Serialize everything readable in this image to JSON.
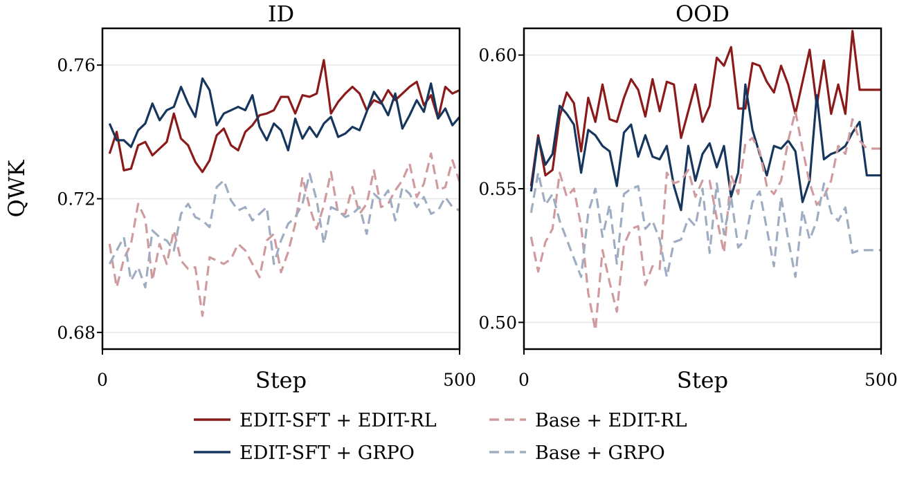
{
  "chart_data": [
    {
      "type": "line",
      "title": "ID",
      "xlabel": "Step",
      "ylabel": "QWK",
      "xlim": [
        0,
        500
      ],
      "ylim": [
        0.675,
        0.771
      ],
      "xticks": [
        0,
        500
      ],
      "xtick_labels": [
        "0",
        "500"
      ],
      "yticks": [
        0.68,
        0.72,
        0.76
      ],
      "ytick_labels": [
        "0.68",
        "0.72",
        "0.76"
      ],
      "grid": "horizontal",
      "x": [
        10,
        20,
        30,
        40,
        50,
        60,
        70,
        80,
        90,
        100,
        110,
        120,
        130,
        140,
        150,
        160,
        170,
        180,
        190,
        200,
        210,
        220,
        230,
        240,
        250,
        260,
        270,
        280,
        290,
        300,
        310,
        320,
        330,
        340,
        350,
        360,
        370,
        380,
        390,
        400,
        410,
        420,
        430,
        440,
        450,
        460,
        470,
        480,
        490,
        500
      ],
      "series": [
        {
          "name": "EDIT-SFT + EDIT-RL",
          "style": "solid",
          "color": "#8b1a1a",
          "values": [
            0.7335,
            0.74,
            0.7285,
            0.729,
            0.736,
            0.737,
            0.733,
            0.735,
            0.737,
            0.7455,
            0.738,
            0.736,
            0.731,
            0.728,
            0.7315,
            0.739,
            0.741,
            0.736,
            0.7345,
            0.74,
            0.742,
            0.745,
            0.7455,
            0.7465,
            0.7505,
            0.7505,
            0.7455,
            0.751,
            0.7505,
            0.7515,
            0.7615,
            0.7455,
            0.749,
            0.7515,
            0.7535,
            0.7515,
            0.7465,
            0.7495,
            0.7485,
            0.7525,
            0.7495,
            0.7515,
            0.7535,
            0.755,
            0.748,
            0.751,
            0.744,
            0.7535,
            0.7515,
            0.7525
          ]
        },
        {
          "name": "EDIT-SFT + GRPO",
          "style": "solid",
          "color": "#17365d",
          "values": [
            0.7425,
            0.7375,
            0.7375,
            0.7355,
            0.7405,
            0.7425,
            0.7485,
            0.7435,
            0.7465,
            0.7475,
            0.7535,
            0.7485,
            0.7445,
            0.756,
            0.7525,
            0.742,
            0.7455,
            0.7465,
            0.7475,
            0.7465,
            0.751,
            0.7415,
            0.7375,
            0.7425,
            0.7405,
            0.7345,
            0.744,
            0.738,
            0.7415,
            0.7385,
            0.7425,
            0.7445,
            0.7385,
            0.7395,
            0.7415,
            0.7405,
            0.746,
            0.752,
            0.749,
            0.745,
            0.7515,
            0.741,
            0.745,
            0.7495,
            0.746,
            0.7545,
            0.744,
            0.747,
            0.742,
            0.7445
          ]
        },
        {
          "name": "Base + EDIT-RL",
          "style": "dashed",
          "color": "#d09b9e",
          "values": [
            0.7065,
            0.6935,
            0.702,
            0.7065,
            0.7185,
            0.714,
            0.6955,
            0.7065,
            0.7005,
            0.7105,
            0.7015,
            0.699,
            0.6995,
            0.685,
            0.7025,
            0.7015,
            0.7005,
            0.702,
            0.7065,
            0.7045,
            0.7005,
            0.6965,
            0.7075,
            0.7095,
            0.698,
            0.704,
            0.7125,
            0.7265,
            0.7175,
            0.711,
            0.718,
            0.728,
            0.7155,
            0.7155,
            0.7235,
            0.7155,
            0.7185,
            0.7285,
            0.7175,
            0.7185,
            0.7225,
            0.7255,
            0.7305,
            0.7205,
            0.7245,
            0.7335,
            0.7225,
            0.7235,
            0.7315,
            0.725
          ]
        },
        {
          "name": "Base + GRPO",
          "style": "dashed",
          "color": "#9fadc2",
          "values": [
            0.7005,
            0.7045,
            0.7085,
            0.6955,
            0.6995,
            0.6935,
            0.7105,
            0.7085,
            0.7075,
            0.7045,
            0.7155,
            0.7185,
            0.7145,
            0.7135,
            0.7115,
            0.7235,
            0.7255,
            0.7195,
            0.7165,
            0.7175,
            0.7135,
            0.7155,
            0.7175,
            0.7005,
            0.7075,
            0.7125,
            0.7145,
            0.7185,
            0.7275,
            0.7195,
            0.7065,
            0.7175,
            0.7165,
            0.7145,
            0.7155,
            0.7175,
            0.7095,
            0.7215,
            0.7195,
            0.7225,
            0.7135,
            0.7235,
            0.7215,
            0.7175,
            0.7205,
            0.7155,
            0.7165,
            0.7205,
            0.7175,
            0.7165
          ]
        }
      ]
    },
    {
      "type": "line",
      "title": "OOD",
      "xlabel": "Step",
      "ylabel": "",
      "xlim": [
        0,
        500
      ],
      "ylim": [
        0.49,
        0.61
      ],
      "xticks": [
        0,
        500
      ],
      "xtick_labels": [
        "0",
        "500"
      ],
      "yticks": [
        0.5,
        0.55,
        0.6
      ],
      "ytick_labels": [
        "0.50",
        "0.55",
        "0.60"
      ],
      "grid": "horizontal",
      "x": [
        10,
        20,
        30,
        40,
        50,
        60,
        70,
        80,
        90,
        100,
        110,
        120,
        130,
        140,
        150,
        160,
        170,
        180,
        190,
        200,
        210,
        220,
        230,
        240,
        250,
        260,
        270,
        280,
        290,
        300,
        310,
        320,
        330,
        340,
        350,
        360,
        370,
        380,
        390,
        400,
        410,
        420,
        430,
        440,
        450,
        460,
        470,
        480,
        490,
        500
      ],
      "series": [
        {
          "name": "EDIT-SFT + EDIT-RL",
          "style": "solid",
          "color": "#8b1a1a",
          "values": [
            0.551,
            0.57,
            0.555,
            0.557,
            0.577,
            0.586,
            0.582,
            0.564,
            0.584,
            0.575,
            0.589,
            0.576,
            0.575,
            0.584,
            0.591,
            0.587,
            0.577,
            0.591,
            0.579,
            0.59,
            0.589,
            0.569,
            0.579,
            0.589,
            0.575,
            0.581,
            0.599,
            0.596,
            0.603,
            0.58,
            0.58,
            0.597,
            0.596,
            0.59,
            0.586,
            0.596,
            0.589,
            0.578,
            0.59,
            0.602,
            0.581,
            0.598,
            0.578,
            0.589,
            0.578,
            0.609,
            0.587,
            0.587,
            0.587,
            0.587
          ]
        },
        {
          "name": "EDIT-SFT + GRPO",
          "style": "solid",
          "color": "#17365d",
          "values": [
            0.549,
            0.569,
            0.559,
            0.563,
            0.581,
            0.578,
            0.574,
            0.556,
            0.572,
            0.57,
            0.566,
            0.564,
            0.551,
            0.571,
            0.574,
            0.562,
            0.57,
            0.562,
            0.561,
            0.566,
            0.551,
            0.542,
            0.566,
            0.553,
            0.563,
            0.567,
            0.558,
            0.566,
            0.547,
            0.556,
            0.589,
            0.572,
            0.563,
            0.555,
            0.566,
            0.565,
            0.568,
            0.564,
            0.545,
            0.553,
            0.585,
            0.561,
            0.563,
            0.564,
            0.566,
            0.571,
            0.575,
            0.555,
            0.555,
            0.555
          ]
        },
        {
          "name": "Base + EDIT-RL",
          "style": "dashed",
          "color": "#d09b9e",
          "values": [
            0.532,
            0.519,
            0.53,
            0.535,
            0.556,
            0.547,
            0.55,
            0.536,
            0.511,
            0.497,
            0.527,
            0.515,
            0.504,
            0.529,
            0.535,
            0.536,
            0.514,
            0.521,
            0.52,
            0.556,
            0.552,
            0.553,
            0.557,
            0.547,
            0.553,
            0.553,
            0.539,
            0.526,
            0.555,
            0.548,
            0.567,
            0.569,
            0.564,
            0.551,
            0.548,
            0.553,
            0.568,
            0.579,
            0.565,
            0.552,
            0.544,
            0.547,
            0.553,
            0.566,
            0.563,
            0.576,
            0.568,
            0.565,
            0.565,
            0.565
          ]
        },
        {
          "name": "Base + GRPO",
          "style": "dashed",
          "color": "#9fadc2",
          "values": [
            0.541,
            0.556,
            0.544,
            0.548,
            0.538,
            0.531,
            0.524,
            0.517,
            0.541,
            0.55,
            0.532,
            0.544,
            0.522,
            0.548,
            0.55,
            0.551,
            0.535,
            0.538,
            0.531,
            0.517,
            0.53,
            0.531,
            0.539,
            0.536,
            0.55,
            0.526,
            0.552,
            0.533,
            0.547,
            0.528,
            0.531,
            0.545,
            0.549,
            0.535,
            0.521,
            0.547,
            0.531,
            0.517,
            0.542,
            0.531,
            0.538,
            0.552,
            0.541,
            0.538,
            0.543,
            0.526,
            0.527,
            0.527,
            0.527,
            0.527
          ]
        }
      ]
    }
  ],
  "legend": {
    "placement": "bottom-center",
    "items": [
      {
        "label": "EDIT-SFT + EDIT-RL",
        "color": "#8b1a1a",
        "style": "solid"
      },
      {
        "label": "Base + EDIT-RL",
        "color": "#d09b9e",
        "style": "dashed"
      },
      {
        "label": "EDIT-SFT + GRPO",
        "color": "#17365d",
        "style": "solid"
      },
      {
        "label": "Base + GRPO",
        "color": "#9fadc2",
        "style": "dashed"
      }
    ]
  }
}
